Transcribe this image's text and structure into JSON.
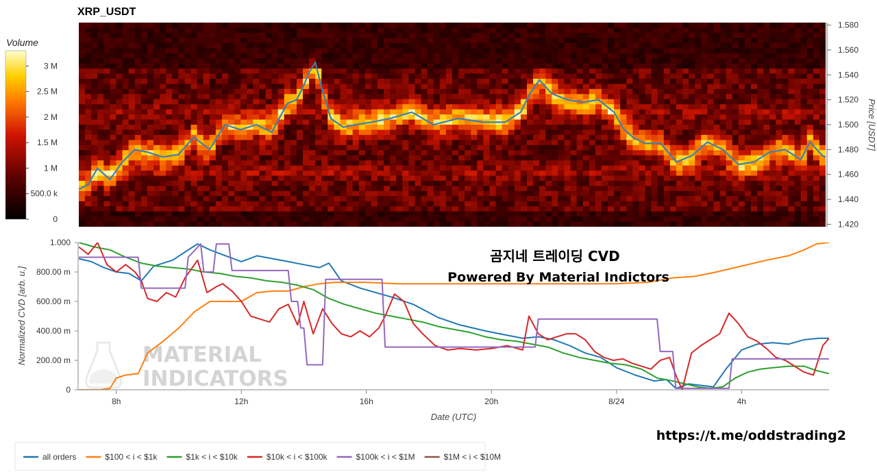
{
  "chart_data": [
    {
      "type": "heatmap",
      "title": "XRP_USDT",
      "ylabel": "Price [USDT]",
      "ylim": [
        1.418,
        1.582
      ],
      "y_ticks": [
        "1.420",
        "1.440",
        "1.460",
        "1.480",
        "1.500",
        "1.520",
        "1.540",
        "1.560",
        "1.580"
      ],
      "colorbar": {
        "title": "Volume",
        "range": [
          0,
          3300000
        ],
        "ticks": [
          "0",
          "500.0 k",
          "1 M",
          "1.5 M",
          "2 M",
          "2.5 M",
          "3 M"
        ]
      },
      "price_line": {
        "x_hours": [
          6.8,
          7.1,
          7.4,
          7.8,
          8.2,
          8.6,
          9.0,
          9.5,
          10.0,
          10.5,
          11.0,
          11.5,
          12.0,
          12.5,
          13.0,
          13.5,
          13.8,
          14.0,
          14.2,
          14.4,
          14.6,
          14.9,
          15.3,
          15.7,
          16.2,
          16.8,
          17.5,
          18.2,
          19.0,
          19.8,
          20.5,
          21.0,
          21.3,
          21.6,
          22.0,
          22.5,
          23.0,
          23.5,
          24.0,
          24.3,
          24.6,
          25.0,
          25.5,
          26.0,
          26.5,
          27.0,
          27.5,
          28.0,
          28.5,
          29.0,
          29.5,
          30.0,
          30.3,
          30.7,
          30.8
        ],
        "price": [
          1.448,
          1.452,
          1.465,
          1.456,
          1.47,
          1.48,
          1.478,
          1.474,
          1.476,
          1.49,
          1.48,
          1.5,
          1.496,
          1.5,
          1.494,
          1.517,
          1.52,
          1.53,
          1.542,
          1.55,
          1.53,
          1.505,
          1.498,
          1.5,
          1.502,
          1.505,
          1.51,
          1.5,
          1.505,
          1.502,
          1.502,
          1.51,
          1.525,
          1.536,
          1.525,
          1.52,
          1.518,
          1.52,
          1.51,
          1.497,
          1.49,
          1.485,
          1.485,
          1.47,
          1.475,
          1.486,
          1.48,
          1.468,
          1.47,
          1.478,
          1.48,
          1.472,
          1.486,
          1.475,
          1.474
        ]
      },
      "band_note": "heavy liquidity bands around 1.460-1.470 and 1.500-1.520 USDT"
    },
    {
      "type": "line",
      "xlabel": "Date (UTC)",
      "ylabel": "Normalized CVD [arb. u.]",
      "xlim": [
        6.8,
        30.8
      ],
      "ylim": [
        0,
        1.0
      ],
      "x_ticks": [
        {
          "label": "8h",
          "hour": 8
        },
        {
          "label": "12h",
          "hour": 12
        },
        {
          "label": "16h",
          "hour": 16
        },
        {
          "label": "20h",
          "hour": 20
        },
        {
          "label": "8/24",
          "hour": 24
        },
        {
          "label": "4h",
          "hour": 28
        }
      ],
      "y_ticks": [
        {
          "label": "0",
          "value": 0
        },
        {
          "label": "200.00 m",
          "value": 0.2
        },
        {
          "label": "400.00 m",
          "value": 0.4
        },
        {
          "label": "600.00 m",
          "value": 0.6
        },
        {
          "label": "800.00 m",
          "value": 0.8
        },
        {
          "label": "1.000",
          "value": 1.0
        }
      ],
      "series": [
        {
          "name": "all orders",
          "color": "#1f77b4",
          "x": [
            6.8,
            7.2,
            7.6,
            8.0,
            8.4,
            8.8,
            9.2,
            9.8,
            10.3,
            10.6,
            11.0,
            11.5,
            12.0,
            12.5,
            13.0,
            13.5,
            14.0,
            14.5,
            14.8,
            15.2,
            15.8,
            16.3,
            16.8,
            17.5,
            18.3,
            19.0,
            19.8,
            20.5,
            21.0,
            21.5,
            22.0,
            22.5,
            23.0,
            23.5,
            24.0,
            24.6,
            25.2,
            25.6,
            25.9,
            26.3,
            26.7,
            27.1,
            27.5,
            28.0,
            28.5,
            29.0,
            29.5,
            30.0,
            30.5,
            30.8
          ],
          "y": [
            0.89,
            0.87,
            0.83,
            0.8,
            0.79,
            0.74,
            0.84,
            0.88,
            0.95,
            0.99,
            0.95,
            0.91,
            0.87,
            0.91,
            0.89,
            0.87,
            0.85,
            0.83,
            0.86,
            0.74,
            0.69,
            0.66,
            0.63,
            0.58,
            0.49,
            0.44,
            0.4,
            0.37,
            0.35,
            0.36,
            0.34,
            0.3,
            0.25,
            0.22,
            0.15,
            0.1,
            0.06,
            0.07,
            0.01,
            0.04,
            0.03,
            0.02,
            0.14,
            0.27,
            0.31,
            0.32,
            0.31,
            0.34,
            0.35,
            0.35
          ]
        },
        {
          "name": "$100 < i < $1k",
          "color": "#ff7f0e",
          "x": [
            6.8,
            7.5,
            7.8,
            8.0,
            8.3,
            8.7,
            9.0,
            9.5,
            10.0,
            10.5,
            11.0,
            11.5,
            12.0,
            12.5,
            13.0,
            13.5,
            14.0,
            14.5,
            15.0,
            16.0,
            17.0,
            18.0,
            19.0,
            20.0,
            21.0,
            22.0,
            23.0,
            24.0,
            25.0,
            25.8,
            26.5,
            27.2,
            28.0,
            28.8,
            29.5,
            30.0,
            30.4,
            30.8
          ],
          "y": [
            0.0,
            0.0,
            0.01,
            0.08,
            0.1,
            0.11,
            0.25,
            0.33,
            0.42,
            0.53,
            0.6,
            0.6,
            0.6,
            0.66,
            0.67,
            0.67,
            0.7,
            0.72,
            0.73,
            0.73,
            0.72,
            0.72,
            0.72,
            0.72,
            0.72,
            0.72,
            0.72,
            0.72,
            0.73,
            0.76,
            0.77,
            0.8,
            0.84,
            0.88,
            0.91,
            0.95,
            0.99,
            1.0
          ]
        },
        {
          "name": "$1k < i < $10k",
          "color": "#2ca02c",
          "x": [
            6.8,
            7.3,
            7.8,
            8.3,
            8.8,
            9.3,
            9.8,
            10.3,
            10.8,
            11.3,
            11.8,
            12.3,
            12.8,
            13.3,
            13.8,
            14.3,
            14.8,
            15.3,
            15.8,
            16.3,
            16.8,
            17.3,
            17.8,
            18.3,
            18.8,
            19.3,
            19.8,
            20.3,
            20.8,
            21.3,
            21.8,
            22.3,
            22.8,
            23.3,
            23.8,
            24.3,
            24.8,
            25.3,
            25.8,
            26.2,
            26.6,
            27.0,
            27.4,
            27.8,
            28.2,
            28.6,
            29.0,
            29.5,
            30.0,
            30.4,
            30.8
          ],
          "y": [
            1.0,
            0.97,
            0.95,
            0.9,
            0.86,
            0.84,
            0.83,
            0.82,
            0.8,
            0.79,
            0.77,
            0.76,
            0.74,
            0.73,
            0.71,
            0.68,
            0.62,
            0.58,
            0.55,
            0.52,
            0.5,
            0.48,
            0.46,
            0.43,
            0.41,
            0.39,
            0.36,
            0.34,
            0.33,
            0.31,
            0.29,
            0.25,
            0.22,
            0.2,
            0.18,
            0.17,
            0.14,
            0.08,
            0.06,
            0.04,
            0.02,
            0.01,
            0.02,
            0.08,
            0.12,
            0.14,
            0.15,
            0.16,
            0.16,
            0.13,
            0.11
          ]
        },
        {
          "name": "$10k < i < $100k",
          "color": "#d62728",
          "x": [
            6.8,
            7.1,
            7.4,
            7.7,
            8.0,
            8.3,
            8.6,
            8.8,
            9.0,
            9.3,
            9.6,
            9.9,
            10.2,
            10.4,
            10.6,
            10.9,
            11.2,
            11.4,
            11.7,
            12.0,
            12.3,
            12.6,
            12.9,
            13.2,
            13.5,
            13.8,
            14.0,
            14.3,
            14.6,
            14.9,
            15.2,
            15.5,
            15.8,
            16.1,
            16.4,
            16.6,
            16.9,
            17.2,
            17.5,
            17.8,
            18.2,
            18.6,
            19.0,
            19.5,
            20.0,
            20.5,
            21.0,
            21.2,
            21.5,
            21.8,
            22.1,
            22.4,
            22.7,
            23.0,
            23.3,
            23.6,
            23.9,
            24.2,
            24.5,
            24.8,
            25.1,
            25.4,
            25.7,
            25.9,
            26.1,
            26.4,
            26.7,
            27.0,
            27.3,
            27.6,
            27.9,
            28.2,
            28.5,
            28.8,
            29.1,
            29.4,
            29.7,
            30.0,
            30.3,
            30.6,
            30.8
          ],
          "y": [
            0.97,
            0.92,
            1.0,
            0.85,
            0.8,
            0.85,
            0.8,
            0.74,
            0.62,
            0.6,
            0.66,
            0.63,
            0.76,
            0.82,
            0.88,
            0.66,
            0.7,
            0.72,
            0.67,
            0.6,
            0.5,
            0.48,
            0.46,
            0.55,
            0.58,
            0.44,
            0.6,
            0.38,
            0.55,
            0.45,
            0.38,
            0.36,
            0.4,
            0.36,
            0.42,
            0.5,
            0.65,
            0.6,
            0.45,
            0.38,
            0.3,
            0.27,
            0.28,
            0.27,
            0.28,
            0.3,
            0.27,
            0.5,
            0.38,
            0.34,
            0.36,
            0.38,
            0.38,
            0.34,
            0.26,
            0.22,
            0.2,
            0.21,
            0.18,
            0.16,
            0.14,
            0.2,
            0.22,
            0.1,
            0.0,
            0.25,
            0.3,
            0.34,
            0.38,
            0.52,
            0.45,
            0.36,
            0.33,
            0.28,
            0.22,
            0.2,
            0.16,
            0.12,
            0.1,
            0.3,
            0.35
          ]
        },
        {
          "name": "$100k < i < $1M",
          "color": "#9467bd",
          "x": [
            6.8,
            8.7,
            8.8,
            10.2,
            10.3,
            10.7,
            10.8,
            11.1,
            11.2,
            11.6,
            11.7,
            13.5,
            13.6,
            13.8,
            13.9,
            14.0,
            14.1,
            14.6,
            14.7,
            16.5,
            16.6,
            21.4,
            21.5,
            25.3,
            25.4,
            25.8,
            25.9,
            27.6,
            27.7,
            30.8
          ],
          "y": [
            0.9,
            0.9,
            0.69,
            0.69,
            0.9,
            0.99,
            0.8,
            0.8,
            0.99,
            0.99,
            0.81,
            0.81,
            0.6,
            0.6,
            0.42,
            0.42,
            0.17,
            0.17,
            0.75,
            0.75,
            0.29,
            0.29,
            0.48,
            0.48,
            0.26,
            0.26,
            0.01,
            0.01,
            0.21,
            0.21
          ]
        },
        {
          "name": "$1M < i < $10M",
          "color": "#8c564b",
          "x": [],
          "y": []
        }
      ]
    }
  ],
  "overlay": {
    "title_ko": "곰지네 트레이딩 CVD",
    "subtitle": "Powered By Material Indictors",
    "link": "https://t.me/oddstrading2",
    "watermark_line1": "MATERIAL",
    "watermark_line2": "INDICATORS"
  },
  "colors": {
    "heat_low": "#000000",
    "heat_mid": "#cc0000",
    "heat_high": "#ffff99",
    "price_line": "#3a7fb4"
  }
}
